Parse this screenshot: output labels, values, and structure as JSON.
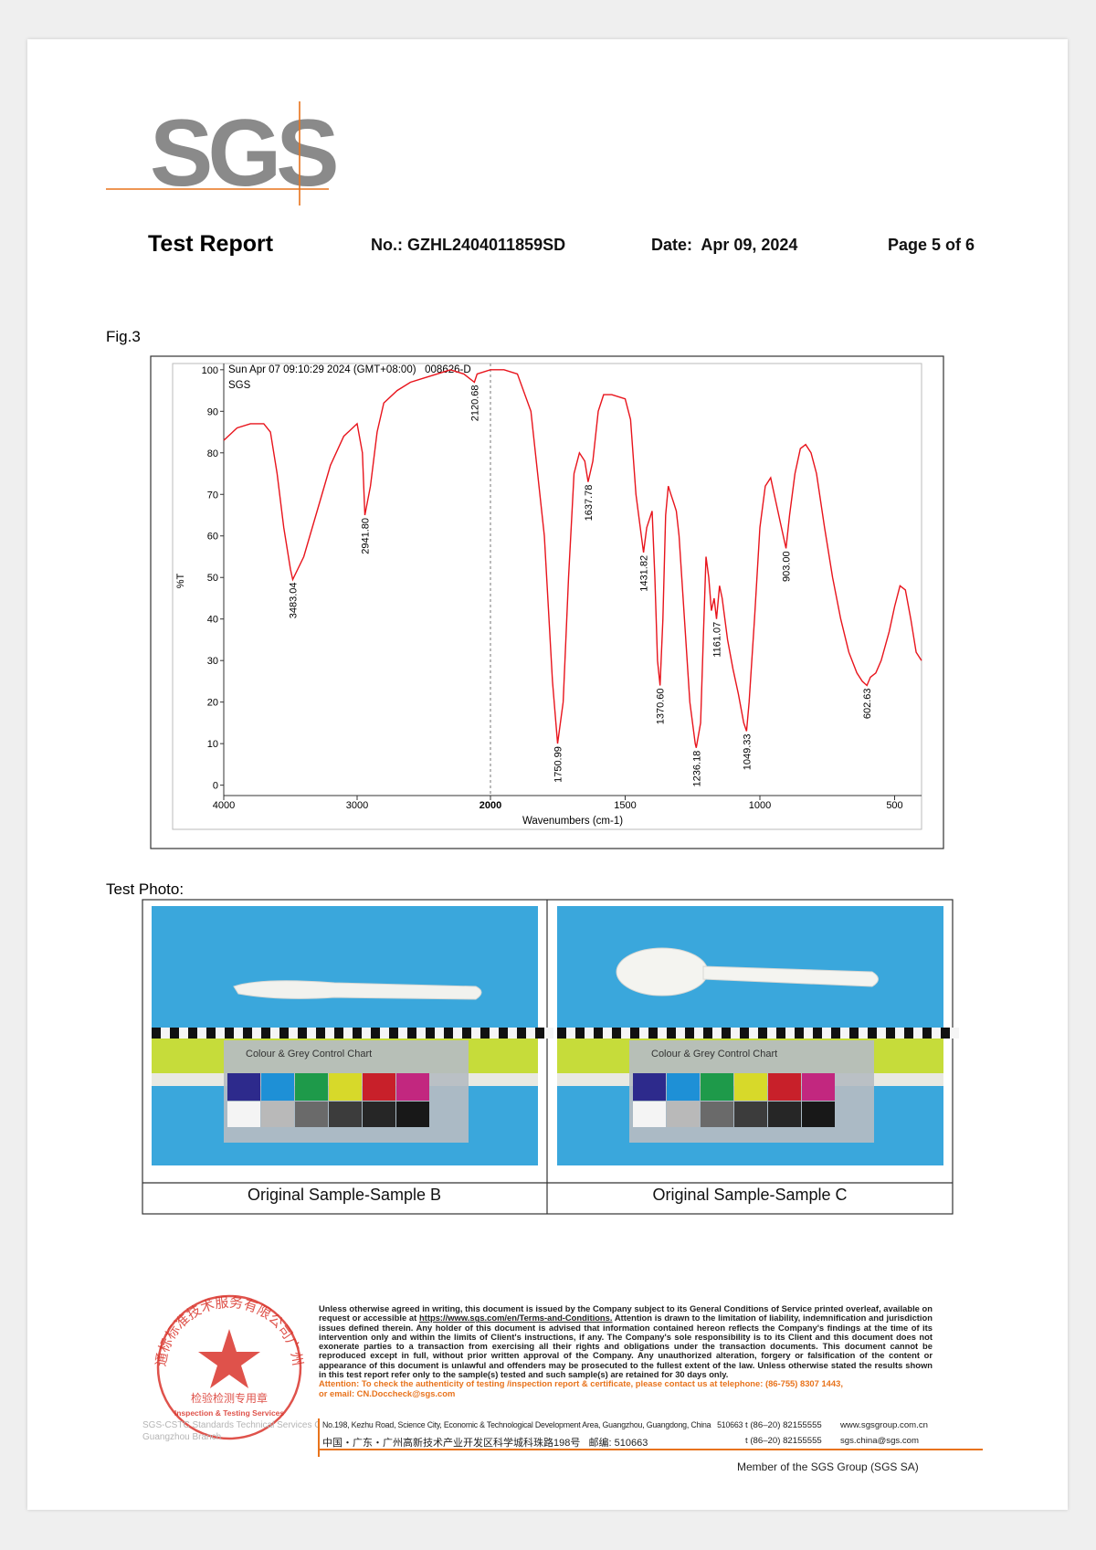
{
  "header": {
    "logo": "SGS",
    "title": "Test Report",
    "number": "No.: GZHL2404011859SD",
    "date": "Date:  Apr 09, 2024",
    "page": "Page 5 of 6"
  },
  "figure": {
    "label": "Fig.3"
  },
  "chart_data": {
    "type": "line",
    "subtitle": "Sun Apr 07 09:10:29 2024 (GMT+08:00)   008626-D",
    "title": "SGS",
    "x_label": "Wavenumbers (cm-1)",
    "y_label": "%T",
    "xlim": [
      4000,
      400
    ],
    "x_break": 2000,
    "ylim": [
      -2.5,
      101.5
    ],
    "xticks": [
      4000,
      3000,
      2000,
      1500,
      1000,
      500
    ],
    "yticks": [
      0,
      10,
      20,
      30,
      40,
      50,
      60,
      70,
      80,
      90,
      100
    ],
    "x": [
      4000,
      3900,
      3800,
      3700,
      3650,
      3600,
      3550,
      3500,
      3483.04,
      3400,
      3300,
      3200,
      3100,
      3000,
      2960,
      2941.8,
      2900,
      2850,
      2800,
      2700,
      2600,
      2500,
      2400,
      2300,
      2200,
      2120.68,
      2100,
      2000,
      1950,
      1900,
      1850,
      1800,
      1770,
      1750.99,
      1730,
      1710,
      1690,
      1670,
      1650,
      1637.78,
      1620,
      1600,
      1580,
      1550,
      1500,
      1480,
      1460,
      1440,
      1431.82,
      1420,
      1400,
      1390,
      1380,
      1370.6,
      1360,
      1350,
      1340,
      1330,
      1320,
      1310,
      1300,
      1280,
      1260,
      1240,
      1236.18,
      1220,
      1210,
      1200,
      1190,
      1180,
      1170,
      1161.07,
      1150,
      1140,
      1120,
      1100,
      1080,
      1060,
      1049.33,
      1040,
      1020,
      1000,
      980,
      960,
      940,
      920,
      903,
      890,
      870,
      850,
      830,
      810,
      790,
      760,
      730,
      700,
      670,
      640,
      620,
      602.63,
      590,
      570,
      550,
      520,
      500,
      480,
      460,
      440,
      420,
      400
    ],
    "series": [
      {
        "color": "#e8141c",
        "values": [
          83,
          86,
          87,
          87,
          85,
          75,
          62,
          52,
          49.5,
          55,
          66,
          77,
          84,
          87,
          80,
          65,
          72,
          85,
          92,
          95,
          97,
          98,
          99,
          100,
          99,
          97,
          99,
          100,
          100,
          99,
          90,
          60,
          25,
          10,
          20,
          50,
          75,
          80,
          78,
          73,
          78,
          90,
          94,
          94,
          93,
          88,
          70,
          60,
          56,
          62,
          66,
          50,
          30,
          24,
          40,
          65,
          72,
          70,
          68,
          66,
          60,
          40,
          20,
          10,
          9,
          15,
          35,
          55,
          50,
          42,
          45,
          40,
          48,
          45,
          35,
          28,
          22,
          15,
          13,
          20,
          40,
          62,
          72,
          74,
          68,
          62,
          57,
          65,
          75,
          81,
          82,
          80,
          75,
          62,
          50,
          40,
          32,
          27,
          25,
          24,
          26,
          27,
          30,
          37,
          43,
          48,
          47,
          40,
          32,
          30
        ]
      }
    ],
    "peaks": [
      3483.04,
      {
        "value": 2941.8,
        "label": "2941.80"
      },
      2120.68,
      1750.99,
      1637.78,
      1431.82,
      {
        "value": 1370.6,
        "label": "1370.60"
      },
      1236.18,
      1161.07,
      1049.33,
      {
        "value": 903,
        "label": "903.00"
      },
      602.63
    ]
  },
  "photos": {
    "label": "Test Photo:",
    "items": [
      {
        "caption": "Original Sample-Sample B",
        "chart_text": "Colour & Grey Control Chart"
      },
      {
        "caption": "Original Sample-Sample C",
        "chart_text": "Colour & Grey Control Chart"
      }
    ]
  },
  "footer": {
    "stamp": {
      "ring": "通标标准技术服务有限公司广州分公司",
      "center": "检验检测专用章",
      "english": "Inspection & Testing Services"
    },
    "company": "SGS-CSTC Standards Technical Services Co., Ltd.",
    "branch": "Guangzhou Branch",
    "disclaimer_a": "Unless otherwise agreed in writing, this document is issued by the Company subject to its General Conditions of Service printed overleaf, available on request or accessible at",
    "disclaimer_link": "https://www.sgs.com/en/Terms-and-Conditions.",
    "disclaimer_b": "Attention is drawn to the limitation of liability, indemnification and jurisdiction issues defined therein. Any holder of this document is advised that information contained hereon reflects the Company's findings at the time of its intervention only and within the limits of Client's instructions, if any. The Company's sole responsibility is to its Client and this document does not exonerate parties to a transaction from exercising all their rights and obligations under the transaction documents. This document cannot be reproduced except in full, without prior written approval of the Company. Any unauthorized alteration, forgery or falsification of the content or appearance of this document is unlawful and offenders may be prosecuted to the fullest extent of the law. Unless otherwise stated the results shown in this test report refer only to the sample(s) tested and such sample(s) are retained for 30 days only.",
    "attention": "Attention: To check the authenticity of testing /inspection report & certificate, please contact us at telephone: (86-755) 8307 1443,",
    "email": "or email: CN.Doccheck@sgs.com",
    "address_en": "No.198, Kezhu Road, Science City, Economic & Technological Development Area, Guangzhou, Guangdong, China   510663",
    "phone_en": "t (86–20) 82155555",
    "web": "www.sgsgroup.com.cn",
    "address_cn": "中国・广东・广州高新技术产业开发区科学城科珠路198号   邮编: 510663",
    "phone_cn": "t (86–20) 82155555",
    "mail": "sgs.china@sgs.com",
    "member": "Member of the SGS Group (SGS SA)"
  }
}
